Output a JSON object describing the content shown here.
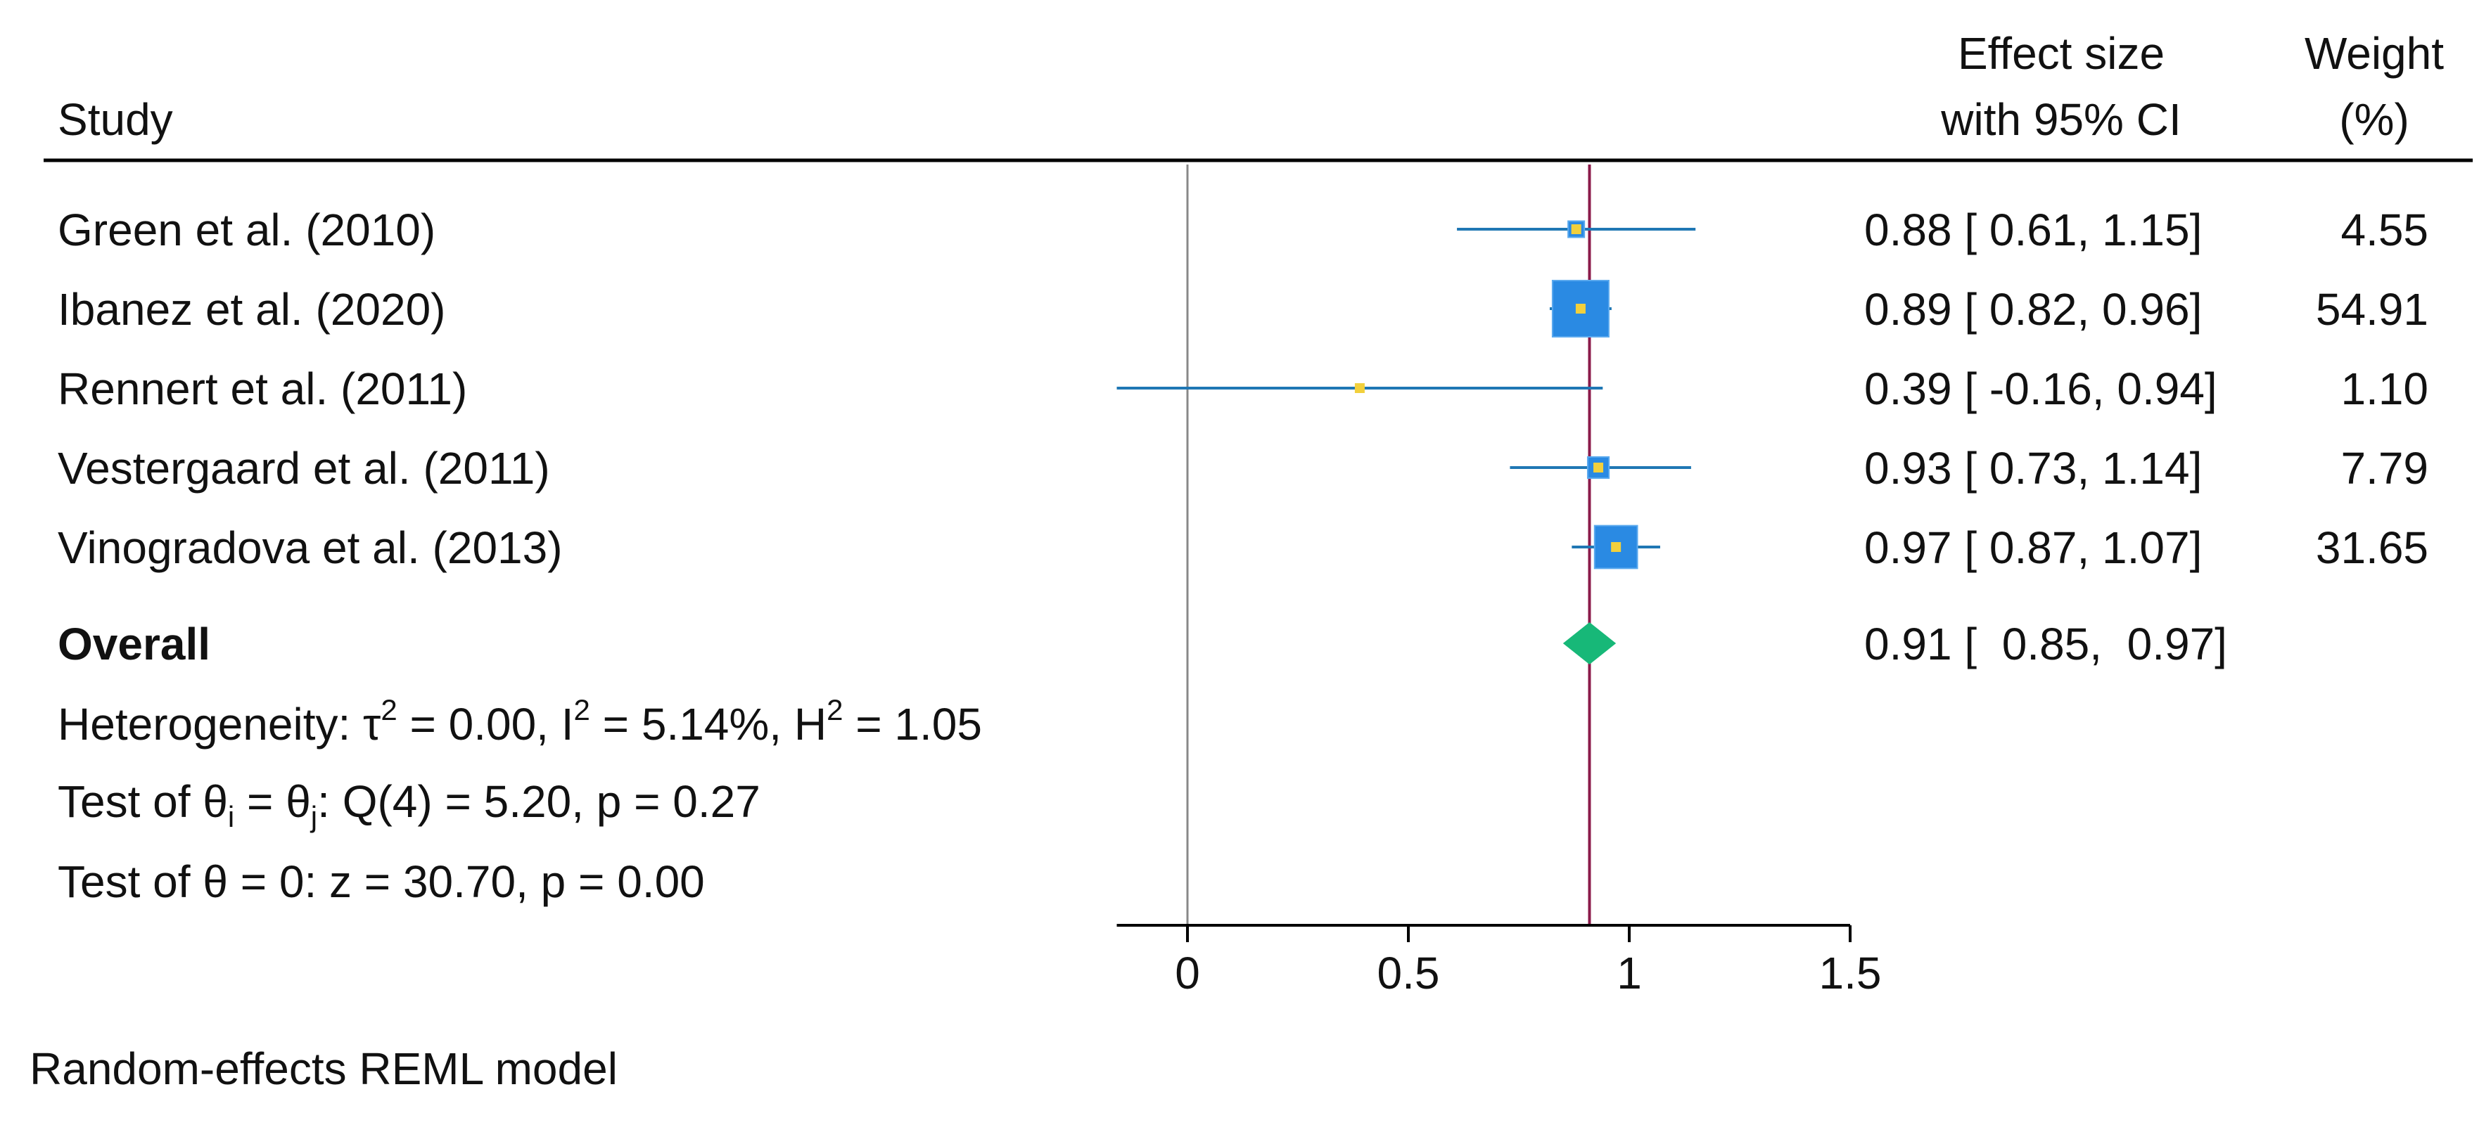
{
  "chart_data": {
    "type": "forest",
    "headers": {
      "study": "Study",
      "effect_line1": "Effect size",
      "effect_line2": "with 95% CI",
      "weight_line1": "Weight",
      "weight_line2": "(%)"
    },
    "studies": [
      {
        "name": "Green et al. (2010)",
        "es": 0.88,
        "lo": 0.61,
        "hi": 1.15,
        "ci_text": "0.88 [  0.61,  1.15]",
        "weight": 4.55,
        "weight_text": "4.55"
      },
      {
        "name": "Ibanez et al. (2020)",
        "es": 0.89,
        "lo": 0.82,
        "hi": 0.96,
        "ci_text": "0.89 [  0.82,  0.96]",
        "weight": 54.91,
        "weight_text": "54.91"
      },
      {
        "name": "Rennert et al. (2011)",
        "es": 0.39,
        "lo": -0.16,
        "hi": 0.94,
        "ci_text": "0.39 [ -0.16,  0.94]",
        "weight": 1.1,
        "weight_text": "1.10"
      },
      {
        "name": "Vestergaard et al. (2011)",
        "es": 0.93,
        "lo": 0.73,
        "hi": 1.14,
        "ci_text": "0.93 [  0.73,  1.14]",
        "weight": 7.79,
        "weight_text": "7.79"
      },
      {
        "name": "Vinogradova et al. (2013)",
        "es": 0.97,
        "lo": 0.87,
        "hi": 1.07,
        "ci_text": "0.97 [  0.87,  1.07]",
        "weight": 31.65,
        "weight_text": "31.65"
      }
    ],
    "overall": {
      "label": "Overall",
      "es": 0.91,
      "lo": 0.85,
      "hi": 0.97,
      "ci_text": "0.91 [  0.85,  0.97]"
    },
    "heterogeneity": {
      "prefix": "Heterogeneity: τ",
      "tau_part": " = 0.00, I",
      "i_part": " = 5.14%, H",
      "h_part": " = 1.05",
      "sup": "2"
    },
    "test_theta_equal": {
      "part1": "Test of θ",
      "sub_i": "i",
      "part2": " = θ",
      "sub_j": "j",
      "part3": ": Q(4) = 5.20, p = 0.27"
    },
    "test_theta_zero": "Test of θ = 0: z = 30.70, p = 0.00",
    "xaxis": {
      "ticks": [
        0,
        0.5,
        1,
        1.5
      ],
      "tick_labels": [
        "0",
        "0.5",
        "1",
        "1.5"
      ],
      "range": [
        -0.16,
        1.5
      ]
    },
    "null_line": 0,
    "footnote": "Random-effects REML model",
    "colors": {
      "ci_line": "#1f77b4",
      "box": "#2a8ae3",
      "point": "#f2d03c",
      "diamond": "#17b878",
      "overall_line": "#8b1a4a",
      "null_line": "#888888",
      "rule": "#000000"
    }
  }
}
